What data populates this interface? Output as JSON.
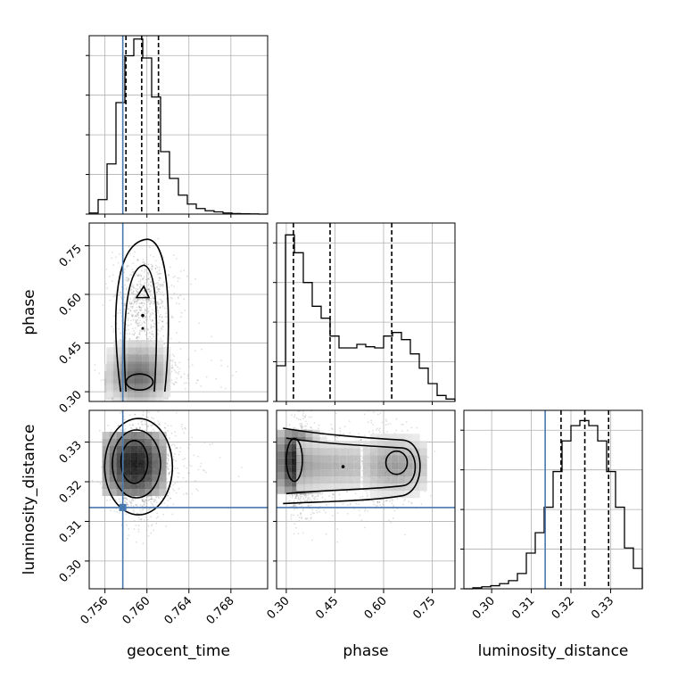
{
  "chart_data": {
    "type": "corner",
    "parameters": [
      {
        "name": "geocent_time",
        "label": "geocent_time",
        "range": [
          0.7545,
          0.7715
        ],
        "ticks": [
          0.756,
          0.76,
          0.764,
          0.768
        ],
        "tick_labels": [
          "0.756",
          "0.760",
          "0.764",
          "0.768"
        ],
        "truth": 0.7577,
        "quantiles": [
          0.758,
          0.7595,
          0.7611
        ]
      },
      {
        "name": "phase",
        "label": "phase",
        "range": [
          0.27,
          0.82
        ],
        "ticks": [
          0.3,
          0.45,
          0.6,
          0.75
        ],
        "tick_labels": [
          "0.30",
          "0.45",
          "0.60",
          "0.75"
        ],
        "truth": null,
        "quantiles": [
          0.322,
          0.435,
          0.625
        ]
      },
      {
        "name": "luminosity_distance",
        "label": "luminosity_distance",
        "range": [
          0.293,
          0.338
        ],
        "ticks": [
          0.3,
          0.31,
          0.32,
          0.33
        ],
        "tick_labels": [
          "0.30",
          "0.31",
          "0.32",
          "0.33"
        ],
        "truth": 0.3135,
        "quantiles": [
          0.3175,
          0.3235,
          0.3295
        ]
      }
    ],
    "histograms": [
      {
        "param": "geocent_time",
        "bin_edges": [
          0.7545,
          0.75535,
          0.7562,
          0.75705,
          0.7579,
          0.75875,
          0.7596,
          0.76045,
          0.7613,
          0.76215,
          0.763,
          0.76385,
          0.7647,
          0.76555,
          0.7664,
          0.76725,
          0.7681,
          0.76895,
          0.7698,
          0.77065,
          0.7715
        ],
        "counts": [
          0.01,
          0.13,
          0.45,
          1.0,
          1.42,
          1.57,
          1.4,
          1.05,
          0.56,
          0.32,
          0.17,
          0.09,
          0.05,
          0.03,
          0.02,
          0.01,
          0.005,
          0.003,
          0.002,
          0.0
        ],
        "ymax": 1.6
      },
      {
        "param": "phase",
        "bin_edges": [
          0.27,
          0.2975,
          0.325,
          0.3525,
          0.38,
          0.4075,
          0.435,
          0.4625,
          0.49,
          0.5175,
          0.545,
          0.5725,
          0.6,
          0.6275,
          0.655,
          0.6825,
          0.71,
          0.7375,
          0.765,
          0.7925,
          0.82
        ],
        "counts": [
          0.3,
          1.4,
          1.25,
          1.0,
          0.8,
          0.7,
          0.55,
          0.45,
          0.45,
          0.48,
          0.46,
          0.45,
          0.55,
          0.58,
          0.52,
          0.4,
          0.28,
          0.15,
          0.05,
          0.02
        ],
        "ymax": 1.5
      },
      {
        "param": "luminosity_distance",
        "bin_edges": [
          0.293,
          0.29525,
          0.2975,
          0.29975,
          0.302,
          0.30425,
          0.3065,
          0.30875,
          0.311,
          0.31325,
          0.3155,
          0.31775,
          0.32,
          0.32225,
          0.3245,
          0.32675,
          0.329,
          0.33125,
          0.3335,
          0.33575,
          0.338
        ],
        "counts": [
          0.0,
          0.01,
          0.02,
          0.03,
          0.05,
          0.08,
          0.15,
          0.35,
          0.55,
          0.8,
          1.15,
          1.45,
          1.6,
          1.65,
          1.6,
          1.45,
          1.15,
          0.8,
          0.4,
          0.2
        ],
        "ymax": 1.75
      }
    ],
    "joint_panels": [
      {
        "x": "geocent_time",
        "y": "phase",
        "truth_x": 0.7577,
        "truth_y": null
      },
      {
        "x": "geocent_time",
        "y": "luminosity_distance",
        "truth_x": 0.7577,
        "truth_y": 0.3135
      },
      {
        "x": "phase",
        "y": "luminosity_distance",
        "truth_x": null,
        "truth_y": 0.3135
      }
    ],
    "grid": true,
    "truth_color": "#4878b0"
  }
}
